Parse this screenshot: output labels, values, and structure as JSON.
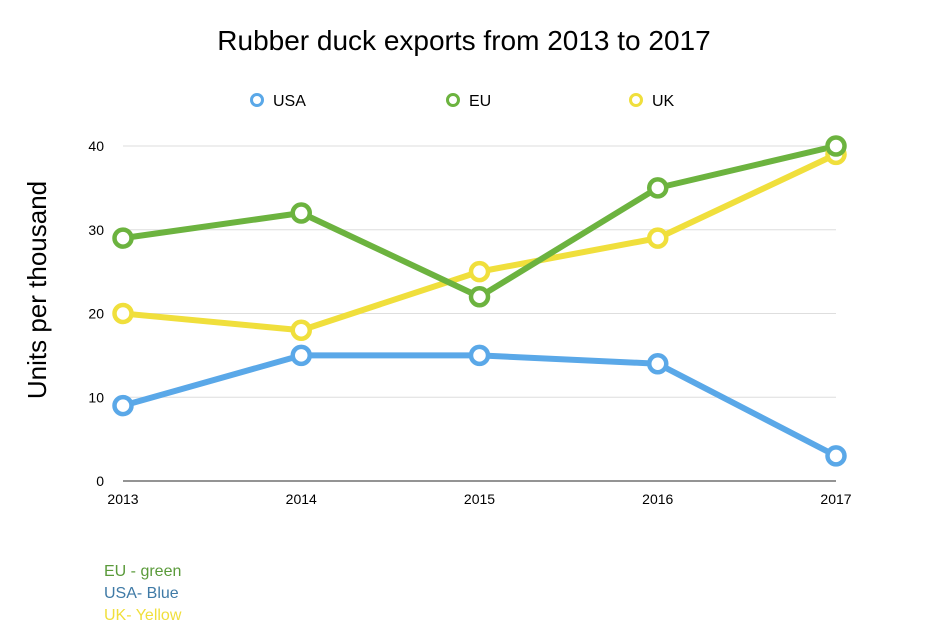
{
  "chart_data": {
    "type": "line",
    "title": "Rubber duck exports from 2013 to 2017",
    "xlabel": "",
    "ylabel": "Units per thousand",
    "categories": [
      "2013",
      "2014",
      "2015",
      "2016",
      "2017"
    ],
    "yticks": [
      0,
      10,
      20,
      30,
      40
    ],
    "ylim": [
      0,
      40
    ],
    "grid": true,
    "legend_position": "top",
    "series": [
      {
        "name": "USA",
        "color": "#5aa8e8",
        "values": [
          9,
          15,
          15,
          14,
          3
        ]
      },
      {
        "name": "EU",
        "color": "#6cb33f",
        "values": [
          29,
          32,
          22,
          35,
          40
        ]
      },
      {
        "name": "UK",
        "color": "#f0df3c",
        "values": [
          20,
          18,
          25,
          29,
          39
        ]
      }
    ]
  },
  "notes": [
    {
      "text": "EU - green",
      "color": "#5a9a3a"
    },
    {
      "text": "USA- Blue",
      "color": "#3f7aa6"
    },
    {
      "text": "UK- Yellow",
      "color": "#f0df3c"
    }
  ]
}
